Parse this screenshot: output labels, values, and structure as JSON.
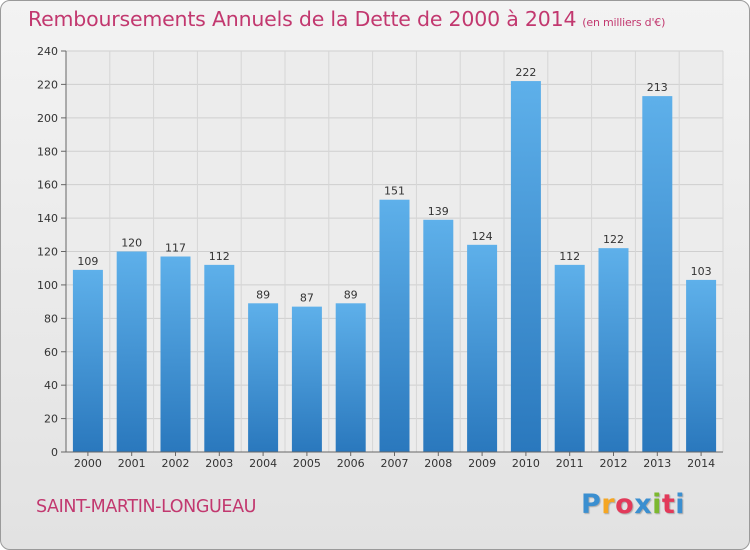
{
  "chart_data": {
    "type": "bar",
    "title": "Remboursements Annuels de la Dette de 2000 à 2014",
    "subtitle": "(en milliers d'€)",
    "categories": [
      "2000",
      "2001",
      "2002",
      "2003",
      "2004",
      "2005",
      "2006",
      "2007",
      "2008",
      "2009",
      "2010",
      "2011",
      "2012",
      "2013",
      "2014"
    ],
    "values": [
      109,
      120,
      117,
      112,
      89,
      87,
      89,
      151,
      139,
      124,
      222,
      112,
      122,
      213,
      103
    ],
    "ylim": [
      0,
      240
    ],
    "yticks": [
      0,
      20,
      40,
      60,
      80,
      100,
      120,
      140,
      160,
      180,
      200,
      220,
      240
    ],
    "xlabel": "",
    "ylabel": "",
    "grid": true,
    "bar_color": "#3a8fd6"
  },
  "footer": {
    "commune": "SAINT-MARTIN-LONGUEAU",
    "logo_letters": [
      "P",
      "r",
      "o",
      "x",
      "i",
      "t",
      "i"
    ],
    "logo_colors": [
      "#3b8fd0",
      "#f5a623",
      "#e23a5a",
      "#3b8fd0",
      "#7cb82f",
      "#e23a5a",
      "#3b8fd0"
    ]
  }
}
